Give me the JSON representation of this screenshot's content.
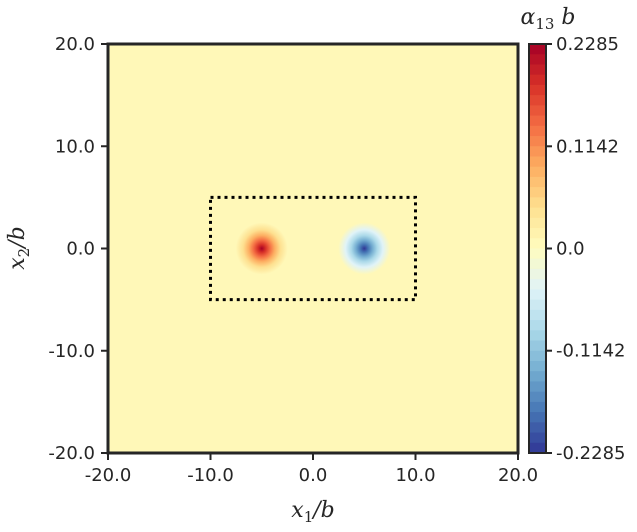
{
  "chart_data": {
    "type": "heatmap",
    "xlabel_main": "x",
    "xlabel_sub": "1",
    "xlabel_suffix": "/b",
    "ylabel_main": "x",
    "ylabel_sub": "2",
    "ylabel_suffix": "/b",
    "colorbar_title_main": "α",
    "colorbar_title_sub": "13",
    "colorbar_title_suffix": " b",
    "xlim": [
      -20,
      20
    ],
    "ylim": [
      -20,
      20
    ],
    "xticks": [
      -20,
      -10,
      0,
      10,
      20
    ],
    "xtick_labels": [
      "-20.0",
      "-10.0",
      "0.0",
      "10.0",
      "20.0"
    ],
    "yticks": [
      20,
      10,
      0,
      -10,
      -20
    ],
    "ytick_labels": [
      "20.0",
      "10.0",
      "0.0",
      "-10.0",
      "-20.0"
    ],
    "colorbar_range": [
      -0.2285,
      0.2285
    ],
    "colorbar_ticks": [
      0.2285,
      0.1142,
      0.0,
      -0.1142,
      -0.2285
    ],
    "colorbar_tick_labels": [
      "0.2285",
      "0.1142",
      "0.0",
      "-0.1142",
      "-0.2285"
    ],
    "colormap": "RdYlBu_r",
    "background_value": 0.0,
    "sources": [
      {
        "x": -5,
        "y": 0,
        "peak": 0.2285,
        "sign": "positive"
      },
      {
        "x": 5,
        "y": 0,
        "peak": -0.2285,
        "sign": "negative"
      }
    ],
    "dotted_box": {
      "x": [
        -10,
        10
      ],
      "y": [
        -5,
        5
      ]
    },
    "colors": {
      "background": "#fff8b8",
      "frame": "#262626",
      "colormap_stops": [
        "#313695",
        "#4575b4",
        "#74add1",
        "#abd9e9",
        "#e0f3f8",
        "#fffcbf",
        "#fee090",
        "#fdae61",
        "#f46d43",
        "#d73027",
        "#a50026"
      ]
    }
  }
}
